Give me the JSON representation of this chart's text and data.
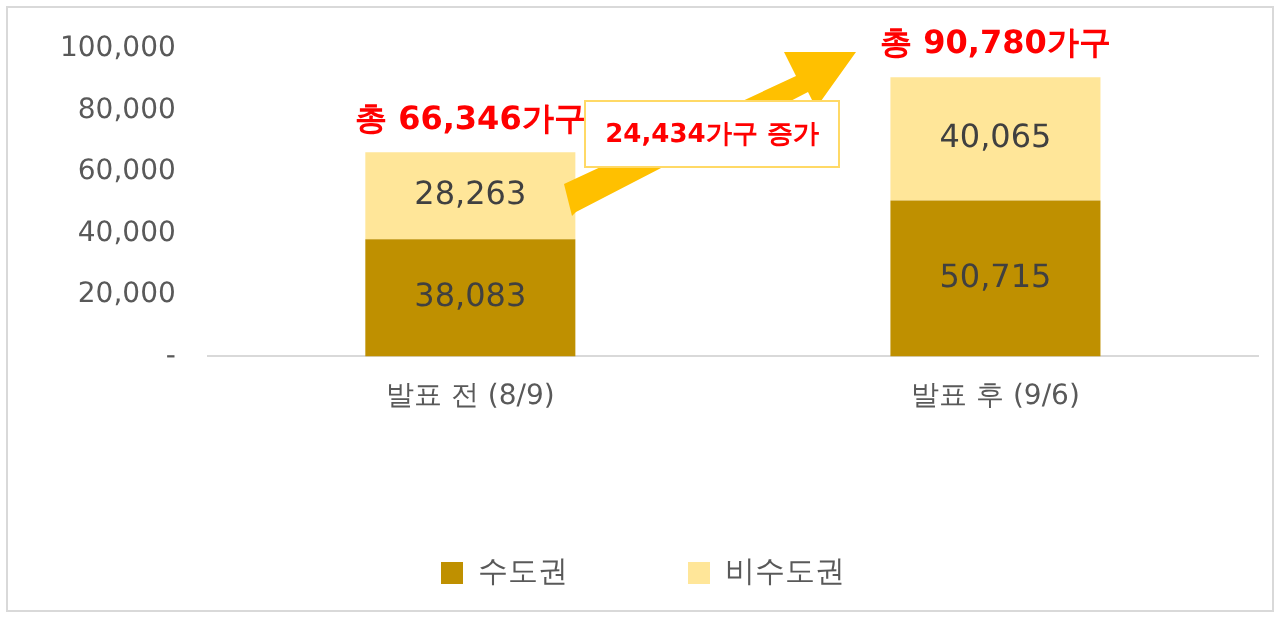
{
  "chart_data": {
    "type": "bar",
    "stacked": true,
    "categories": [
      "발표 전 (8/9)",
      "발표 후 (9/6)"
    ],
    "series": [
      {
        "name": "수도권",
        "color": "#bf9000",
        "values": [
          38083,
          50715
        ],
        "value_labels": [
          "38,083",
          "50,715"
        ]
      },
      {
        "name": "비수도권",
        "color": "#ffe699",
        "values": [
          28263,
          40065
        ],
        "value_labels": [
          "28,263",
          "40,065"
        ]
      }
    ],
    "totals": [
      "총 66,346가구",
      "총 90,780가구"
    ],
    "annotations": [
      "24,434가구 증가"
    ],
    "ylim": [
      0,
      100000
    ],
    "yticks": [
      {
        "value": 0,
        "label": "-"
      },
      {
        "value": 20000,
        "label": "20,000"
      },
      {
        "value": 40000,
        "label": "40,000"
      },
      {
        "value": 60000,
        "label": "60,000"
      },
      {
        "value": 80000,
        "label": "80,000"
      },
      {
        "value": 100000,
        "label": "100,000"
      }
    ],
    "grid": false,
    "legend": "bottom"
  }
}
